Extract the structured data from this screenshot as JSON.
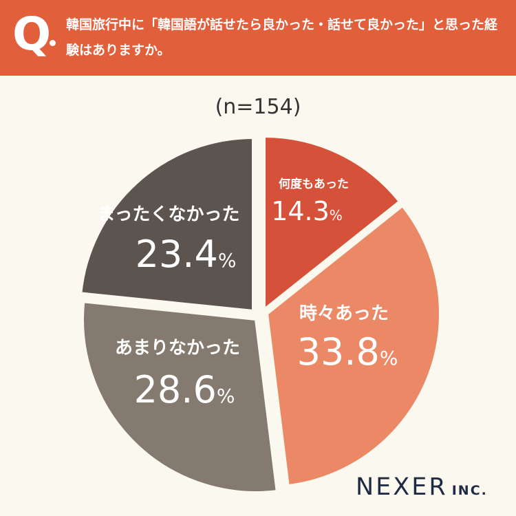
{
  "header": {
    "q_mark": "Q",
    "question": "韓国旅行中に「韓国語が話せたら良かった・話せて良かった」と思った経験はありますか。"
  },
  "sample_size": "(n=154)",
  "chart_data": {
    "type": "pie",
    "title": "",
    "slices": [
      {
        "label": "何度もあった",
        "value": 14.3,
        "value_label": "14.3",
        "unit": "%",
        "color": "#d5513a"
      },
      {
        "label": "時々あった",
        "value": 33.8,
        "value_label": "33.8",
        "unit": "%",
        "color": "#eb8866"
      },
      {
        "label": "あまりなかった",
        "value": 28.6,
        "value_label": "28.6",
        "unit": "%",
        "color": "#857a70"
      },
      {
        "label": "まったくなかった",
        "value": 23.4,
        "value_label": "23.4",
        "unit": "%",
        "color": "#5c544e"
      }
    ],
    "start": "12 o'clock",
    "direction": "clockwise"
  },
  "logo": {
    "name": "NEXER",
    "suffix": "INC."
  }
}
